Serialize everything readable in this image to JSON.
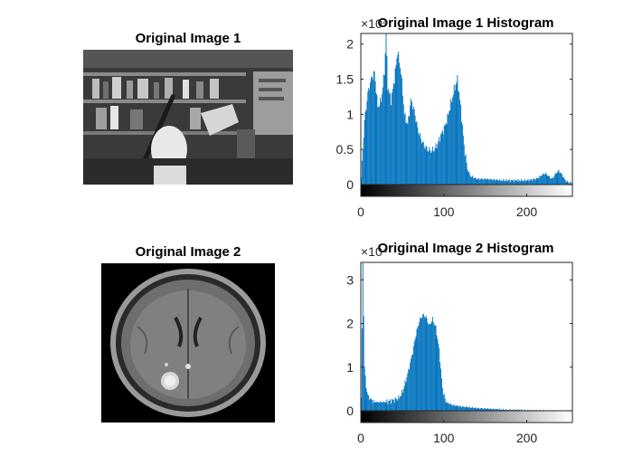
{
  "figure": {
    "subplots": [
      {
        "kind": "image",
        "title": "Original Image 1",
        "image_name": "grayscale office scene with plaster bust and lamp"
      },
      {
        "kind": "histogram",
        "title": "Original Image 1 Histogram",
        "exponent_label": "×10⁴"
      },
      {
        "kind": "image",
        "title": "Original Image 2",
        "image_name": "axial brain MRI scan"
      },
      {
        "kind": "histogram",
        "title": "Original Image 2 Histogram",
        "exponent_label": "×10⁴"
      }
    ]
  },
  "colors": {
    "bars": "#0072BD",
    "axis": "#262626"
  },
  "chart_data": [
    {
      "type": "bar",
      "title": "Original Image 1 Histogram",
      "xlabel": "",
      "ylabel": "",
      "xlim": [
        0,
        255
      ],
      "ylim": [
        0,
        2.15
      ],
      "y_multiplier": 10000,
      "xticks": [
        0,
        100,
        200
      ],
      "yticks": [
        0,
        0.5,
        1,
        1.5,
        2
      ],
      "ytick_labels": [
        "0",
        "0.5",
        "1",
        "1.5",
        "2"
      ],
      "colorbar": "grayscale 0-255",
      "x": [
        0,
        4,
        8,
        12,
        16,
        20,
        24,
        28,
        30,
        32,
        36,
        40,
        44,
        48,
        52,
        56,
        60,
        64,
        68,
        72,
        76,
        80,
        84,
        88,
        92,
        96,
        100,
        104,
        108,
        112,
        116,
        120,
        124,
        128,
        132,
        136,
        140,
        150,
        160,
        170,
        180,
        190,
        200,
        210,
        214,
        218,
        222,
        226,
        230,
        234,
        238,
        242,
        246,
        250,
        255
      ],
      "values": [
        0.1,
        0.9,
        1.3,
        1.5,
        1.6,
        1.1,
        1.2,
        1.6,
        2.15,
        1.4,
        1.2,
        1.5,
        1.9,
        1.6,
        1.0,
        0.85,
        1.2,
        1.05,
        0.8,
        0.65,
        0.55,
        0.5,
        0.48,
        0.5,
        0.58,
        0.7,
        0.8,
        0.95,
        1.15,
        1.35,
        1.5,
        1.1,
        0.55,
        0.22,
        0.12,
        0.1,
        0.08,
        0.08,
        0.07,
        0.06,
        0.06,
        0.06,
        0.06,
        0.08,
        0.1,
        0.14,
        0.16,
        0.12,
        0.08,
        0.15,
        0.2,
        0.14,
        0.06,
        0.03,
        0.02
      ]
    },
    {
      "type": "bar",
      "title": "Original Image 2 Histogram",
      "xlabel": "",
      "ylabel": "",
      "xlim": [
        0,
        255
      ],
      "ylim": [
        0,
        3.4
      ],
      "y_multiplier": 10000,
      "xticks": [
        0,
        100,
        200
      ],
      "yticks": [
        0,
        1,
        2,
        3
      ],
      "ytick_labels": [
        "0",
        "1",
        "2",
        "3"
      ],
      "colorbar": "grayscale 0-255",
      "x": [
        0,
        2,
        4,
        6,
        8,
        12,
        16,
        20,
        30,
        40,
        46,
        50,
        54,
        58,
        62,
        66,
        70,
        74,
        78,
        82,
        86,
        90,
        94,
        98,
        102,
        110,
        120,
        130,
        140,
        150,
        160,
        170,
        180,
        190,
        200,
        220,
        240,
        255
      ],
      "values": [
        0.3,
        3.4,
        1.0,
        0.55,
        0.35,
        0.25,
        0.2,
        0.2,
        0.2,
        0.25,
        0.3,
        0.45,
        0.7,
        1.0,
        1.35,
        1.75,
        2.05,
        2.2,
        2.15,
        1.95,
        2.1,
        1.9,
        1.4,
        0.5,
        0.2,
        0.13,
        0.1,
        0.08,
        0.06,
        0.05,
        0.04,
        0.03,
        0.02,
        0.02,
        0.01,
        0.005,
        0.0,
        0.0
      ]
    }
  ]
}
